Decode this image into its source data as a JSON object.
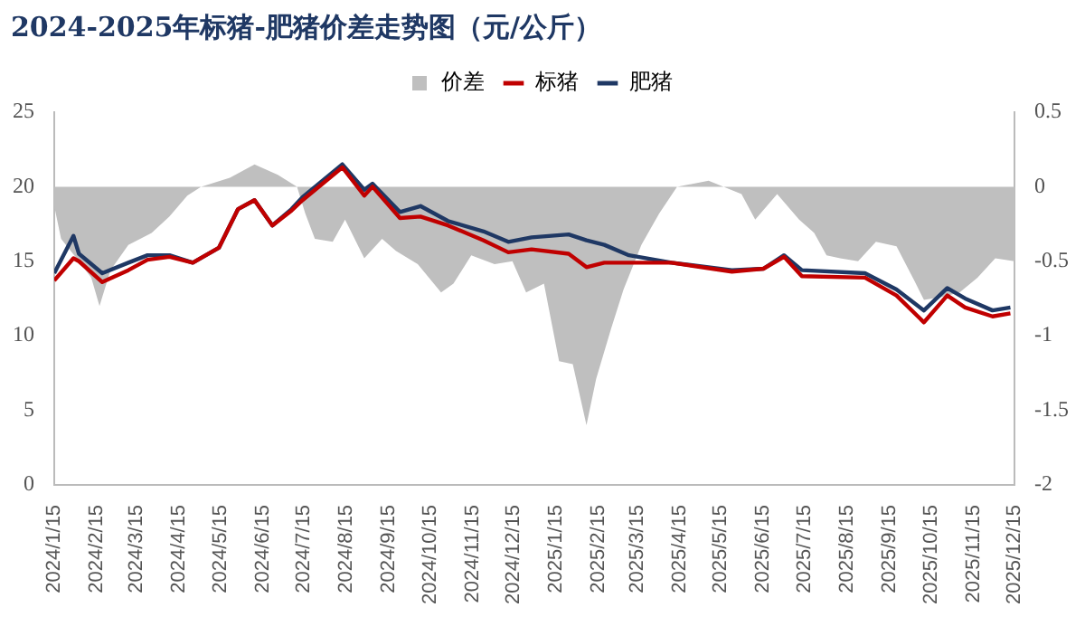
{
  "chart_data": {
    "type": "line",
    "title": "2024-2025年标猪-肥猪价差走势图（元/公斤）",
    "legend": "top",
    "grid": false,
    "marker": "none",
    "xlim": [
      "2024-01-15",
      "2025-12-15"
    ],
    "xticks": [
      {
        "value": "2024-01-15",
        "label": "2024/1/15"
      },
      {
        "value": "2024-02-15",
        "label": "2024/2/15"
      },
      {
        "value": "2024-03-15",
        "label": "2024/3/15"
      },
      {
        "value": "2024-04-15",
        "label": "2024/4/15"
      },
      {
        "value": "2024-05-15",
        "label": "2024/5/15"
      },
      {
        "value": "2024-06-15",
        "label": "2024/6/15"
      },
      {
        "value": "2024-07-15",
        "label": "2024/7/15"
      },
      {
        "value": "2024-08-15",
        "label": "2024/8/15"
      },
      {
        "value": "2024-09-15",
        "label": "2024/9/15"
      },
      {
        "value": "2024-10-15",
        "label": "2024/10/15"
      },
      {
        "value": "2024-11-15",
        "label": "2024/11/15"
      },
      {
        "value": "2024-12-15",
        "label": "2024/12/15"
      },
      {
        "value": "2025-01-15",
        "label": "2025/1/15"
      },
      {
        "value": "2025-02-15",
        "label": "2025/2/15"
      },
      {
        "value": "2025-03-15",
        "label": "2025/3/15"
      },
      {
        "value": "2025-04-15",
        "label": "2025/4/15"
      },
      {
        "value": "2025-05-15",
        "label": "2025/5/15"
      },
      {
        "value": "2025-06-15",
        "label": "2025/6/15"
      },
      {
        "value": "2025-07-15",
        "label": "2025/7/15"
      },
      {
        "value": "2025-08-15",
        "label": "2025/8/15"
      },
      {
        "value": "2025-09-15",
        "label": "2025/9/15"
      },
      {
        "value": "2025-10-15",
        "label": "2025/10/15"
      },
      {
        "value": "2025-11-15",
        "label": "2025/11/15"
      },
      {
        "value": "2025-12-15",
        "label": "2025/12/15"
      }
    ],
    "ylim": [
      0,
      25
    ],
    "yticks": [
      0,
      5,
      10,
      15,
      20,
      25
    ],
    "y2lim": [
      -2,
      0.5
    ],
    "y2ticks": [
      -2,
      -1.5,
      -1,
      -0.5,
      0,
      0.5
    ],
    "x": [
      "2024-01-15",
      "2024-01-29",
      "2024-02-02",
      "2024-02-19",
      "2024-03-09",
      "2024-03-23",
      "2024-04-08",
      "2024-04-25",
      "2024-05-14",
      "2024-05-28",
      "2024-06-09",
      "2024-06-22",
      "2024-07-06",
      "2024-07-14",
      "2024-08-12",
      "2024-08-28",
      "2024-09-03",
      "2024-09-23",
      "2024-10-08",
      "2024-10-28",
      "2024-11-23",
      "2024-12-11",
      "2024-12-28",
      "2025-01-24",
      "2025-02-06",
      "2025-02-19",
      "2025-03-09",
      "2025-04-09",
      "2025-05-23",
      "2025-06-15",
      "2025-06-30",
      "2025-07-13",
      "2025-08-28",
      "2025-09-20",
      "2025-10-10",
      "2025-10-27",
      "2025-11-09",
      "2025-11-29",
      "2025-12-12"
    ],
    "series": [
      {
        "name": "价差",
        "type": "area",
        "axis": "y2",
        "color": "#bfbfbf",
        "x": [
          "2024-01-15",
          "2024-01-20",
          "2024-02-02",
          "2024-02-11",
          "2024-02-17",
          "2024-02-25",
          "2024-03-09",
          "2024-03-26",
          "2024-04-08",
          "2024-04-21",
          "2024-05-01",
          "2024-05-22",
          "2024-06-09",
          "2024-06-26",
          "2024-07-10",
          "2024-07-16",
          "2024-07-23",
          "2024-08-05",
          "2024-08-14",
          "2024-08-28",
          "2024-09-10",
          "2024-09-20",
          "2024-10-06",
          "2024-10-23",
          "2024-11-01",
          "2024-11-14",
          "2024-12-01",
          "2024-12-14",
          "2024-12-24",
          "2025-01-06",
          "2025-01-17",
          "2025-01-27",
          "2025-02-06",
          "2025-02-13",
          "2025-02-24",
          "2025-03-05",
          "2025-03-18",
          "2025-03-31",
          "2025-04-13",
          "2025-05-06",
          "2025-05-30",
          "2025-06-09",
          "2025-06-25",
          "2025-07-11",
          "2025-07-22",
          "2025-07-31",
          "2025-08-10",
          "2025-08-23",
          "2025-09-05",
          "2025-09-20",
          "2025-10-03",
          "2025-10-10",
          "2025-10-23",
          "2025-11-05",
          "2025-11-18",
          "2025-12-01",
          "2025-12-15"
        ],
        "values": [
          -0.13,
          -0.35,
          -0.5,
          -0.61,
          -0.8,
          -0.56,
          -0.39,
          -0.31,
          -0.2,
          -0.06,
          0,
          0.06,
          0.15,
          0.08,
          0,
          -0.18,
          -0.35,
          -0.37,
          -0.22,
          -0.48,
          -0.35,
          -0.43,
          -0.52,
          -0.71,
          -0.65,
          -0.46,
          -0.52,
          -0.5,
          -0.71,
          -0.65,
          -1.17,
          -1.19,
          -1.6,
          -1.29,
          -0.95,
          -0.69,
          -0.39,
          -0.18,
          0,
          0.04,
          -0.05,
          -0.22,
          -0.05,
          -0.22,
          -0.31,
          -0.46,
          -0.48,
          -0.5,
          -0.37,
          -0.4,
          -0.63,
          -0.76,
          -0.74,
          -0.71,
          -0.61,
          -0.48,
          -0.5
        ]
      },
      {
        "name": "标猪",
        "color": "#c00000",
        "values": [
          13.7,
          15.2,
          15.0,
          13.6,
          14.4,
          15.1,
          15.3,
          14.9,
          15.9,
          18.5,
          19.1,
          17.4,
          18.4,
          19.1,
          21.3,
          19.4,
          20.0,
          17.9,
          18.0,
          17.4,
          16.4,
          15.6,
          15.8,
          15.5,
          14.6,
          14.9,
          14.9,
          14.9,
          14.3,
          14.5,
          15.3,
          14.0,
          13.9,
          12.7,
          10.9,
          12.7,
          11.9,
          11.3,
          11.5
        ]
      },
      {
        "name": "肥猪",
        "color": "#1f3864",
        "values": [
          14.2,
          16.7,
          15.5,
          14.2,
          14.9,
          15.4,
          15.4,
          14.9,
          15.9,
          18.5,
          19.1,
          17.4,
          18.5,
          19.3,
          21.5,
          19.8,
          20.2,
          18.3,
          18.7,
          17.7,
          17.0,
          16.3,
          16.6,
          16.8,
          16.4,
          16.1,
          15.4,
          14.9,
          14.4,
          14.5,
          15.4,
          14.4,
          14.2,
          13.1,
          11.7,
          13.2,
          12.5,
          11.7,
          11.9
        ]
      }
    ]
  }
}
